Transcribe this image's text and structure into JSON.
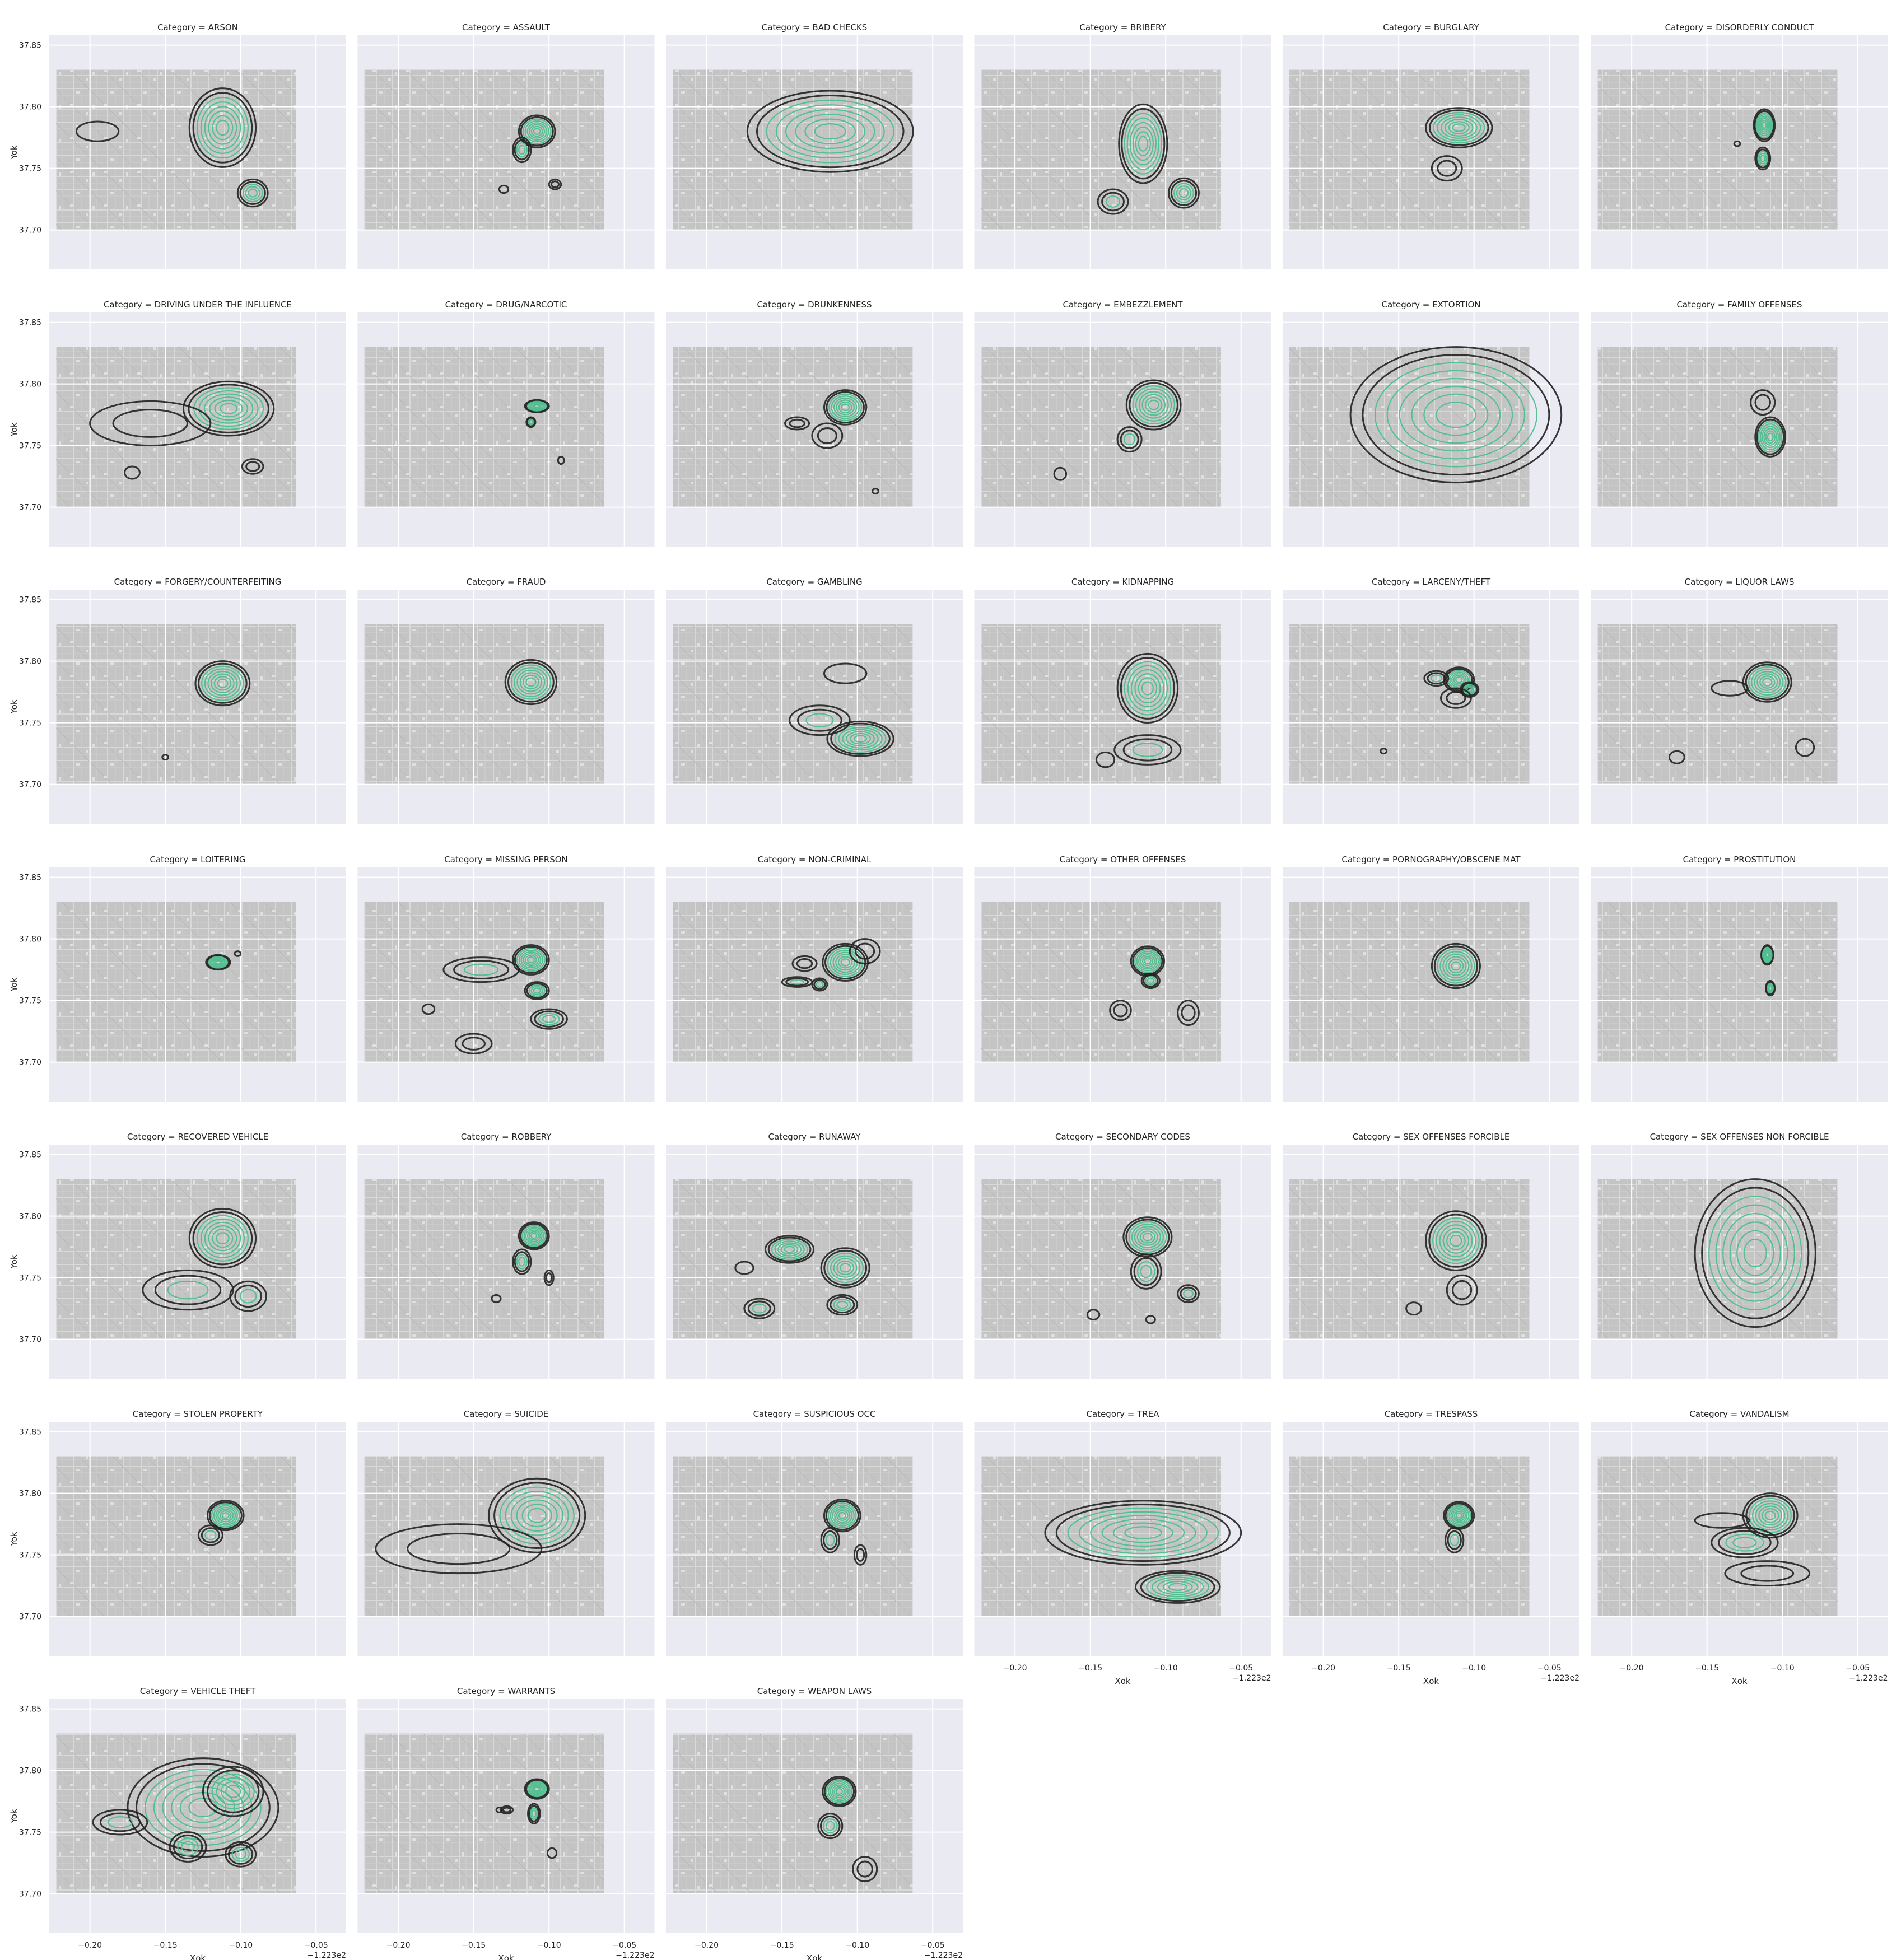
{
  "axes": {
    "xlabel": "Xok",
    "ylabel": "Yok",
    "x_offset_label": "−1.223e2",
    "x_ticks": [
      -0.2,
      -0.15,
      -0.1,
      -0.05
    ],
    "x_tick_labels": [
      "−0.20",
      "−0.15",
      "−0.10",
      "−0.05"
    ],
    "y_ticks": [
      37.7,
      37.75,
      37.8,
      37.85
    ],
    "y_tick_labels": [
      "37.70",
      "37.75",
      "37.80",
      "37.85"
    ],
    "xlim": [
      -0.227,
      -0.03
    ],
    "ylim": [
      37.668,
      37.858
    ]
  },
  "chart_data": {
    "type": "kde-contour-facets",
    "facet_title_prefix": "Category = ",
    "map_extent": {
      "x": [
        -0.2225,
        -0.0633
      ],
      "y": [
        37.7,
        37.83
      ]
    },
    "colors": {
      "outer_contour": "#222222",
      "inner_contour": "#4fbf8f",
      "map": "#c4c4c4",
      "axes_bg": "#eaeaf2",
      "grid": "#ffffff"
    },
    "facets": [
      {
        "category": "ARSON",
        "blobs": [
          [
            -0.112,
            37.783,
            0.022,
            0.032,
            8
          ],
          [
            -0.092,
            37.73,
            0.01,
            0.011,
            5
          ],
          [
            -0.195,
            37.78,
            0.014,
            0.008,
            1
          ]
        ]
      },
      {
        "category": "ASSAULT",
        "blobs": [
          [
            -0.108,
            37.78,
            0.012,
            0.013,
            8
          ],
          [
            -0.118,
            37.765,
            0.006,
            0.01,
            4
          ],
          [
            -0.096,
            37.737,
            0.004,
            0.004,
            2
          ],
          [
            -0.13,
            37.733,
            0.003,
            0.003,
            1
          ]
        ]
      },
      {
        "category": "BAD CHECKS",
        "blobs": [
          [
            -0.118,
            37.78,
            0.055,
            0.033,
            8
          ]
        ]
      },
      {
        "category": "BRIBERY",
        "blobs": [
          [
            -0.115,
            37.77,
            0.016,
            0.032,
            8
          ],
          [
            -0.088,
            37.73,
            0.01,
            0.012,
            5
          ],
          [
            -0.135,
            37.723,
            0.01,
            0.01,
            3
          ]
        ]
      },
      {
        "category": "BURGLARY",
        "blobs": [
          [
            -0.11,
            37.783,
            0.022,
            0.016,
            8
          ],
          [
            -0.118,
            37.75,
            0.01,
            0.01,
            2
          ]
        ]
      },
      {
        "category": "DISORDERLY CONDUCT",
        "blobs": [
          [
            -0.112,
            37.785,
            0.007,
            0.013,
            8
          ],
          [
            -0.113,
            37.758,
            0.005,
            0.009,
            5
          ],
          [
            -0.13,
            37.77,
            0.002,
            0.002,
            1
          ]
        ]
      },
      {
        "category": "DRIVING UNDER THE INFLUENCE",
        "blobs": [
          [
            -0.108,
            37.78,
            0.03,
            0.022,
            8
          ],
          [
            -0.16,
            37.768,
            0.04,
            0.018,
            2
          ],
          [
            -0.092,
            37.733,
            0.007,
            0.006,
            2
          ],
          [
            -0.172,
            37.728,
            0.005,
            0.005,
            1
          ]
        ]
      },
      {
        "category": "DRUG/NARCOTIC",
        "blobs": [
          [
            -0.108,
            37.782,
            0.008,
            0.005,
            8
          ],
          [
            -0.112,
            37.769,
            0.003,
            0.004,
            4
          ],
          [
            -0.092,
            37.738,
            0.002,
            0.003,
            1
          ]
        ]
      },
      {
        "category": "DRUNKENNESS",
        "blobs": [
          [
            -0.108,
            37.781,
            0.014,
            0.014,
            8
          ],
          [
            -0.14,
            37.768,
            0.008,
            0.005,
            2
          ],
          [
            -0.12,
            37.758,
            0.01,
            0.01,
            2
          ],
          [
            -0.088,
            37.713,
            0.002,
            0.002,
            1
          ]
        ]
      },
      {
        "category": "EMBEZZLEMENT",
        "blobs": [
          [
            -0.108,
            37.783,
            0.018,
            0.02,
            8
          ],
          [
            -0.124,
            37.755,
            0.008,
            0.01,
            3
          ],
          [
            -0.17,
            37.727,
            0.004,
            0.005,
            1
          ]
        ]
      },
      {
        "category": "EXTORTION",
        "blobs": [
          [
            -0.112,
            37.775,
            0.07,
            0.055,
            8
          ]
        ]
      },
      {
        "category": "FAMILY OFFENSES",
        "blobs": [
          [
            -0.108,
            37.757,
            0.01,
            0.016,
            8
          ],
          [
            -0.113,
            37.785,
            0.008,
            0.01,
            2
          ]
        ]
      },
      {
        "category": "FORGERY/COUNTERFEITING",
        "blobs": [
          [
            -0.112,
            37.782,
            0.018,
            0.018,
            8
          ],
          [
            -0.15,
            37.722,
            0.002,
            0.002,
            1
          ]
        ]
      },
      {
        "category": "FRAUD",
        "blobs": [
          [
            -0.112,
            37.783,
            0.017,
            0.018,
            8
          ]
        ]
      },
      {
        "category": "GAMBLING",
        "blobs": [
          [
            -0.098,
            37.737,
            0.022,
            0.014,
            8
          ],
          [
            -0.125,
            37.752,
            0.02,
            0.012,
            3
          ],
          [
            -0.108,
            37.79,
            0.014,
            0.008,
            1
          ]
        ]
      },
      {
        "category": "KIDNAPPING",
        "blobs": [
          [
            -0.112,
            37.778,
            0.02,
            0.028,
            8
          ],
          [
            -0.112,
            37.728,
            0.022,
            0.012,
            3
          ],
          [
            -0.14,
            37.72,
            0.006,
            0.006,
            1
          ]
        ]
      },
      {
        "category": "LARCENY/THEFT",
        "blobs": [
          [
            -0.11,
            37.785,
            0.01,
            0.01,
            7
          ],
          [
            -0.103,
            37.777,
            0.006,
            0.006,
            5
          ],
          [
            -0.125,
            37.786,
            0.008,
            0.006,
            3
          ],
          [
            -0.112,
            37.77,
            0.01,
            0.008,
            2
          ],
          [
            -0.16,
            37.727,
            0.002,
            0.002,
            1
          ]
        ]
      },
      {
        "category": "LIQUOR LAWS",
        "blobs": [
          [
            -0.11,
            37.783,
            0.016,
            0.016,
            8
          ],
          [
            -0.135,
            37.778,
            0.012,
            0.006,
            1
          ],
          [
            -0.17,
            37.722,
            0.005,
            0.005,
            1
          ],
          [
            -0.085,
            37.73,
            0.006,
            0.007,
            1
          ]
        ]
      },
      {
        "category": "LOITERING",
        "blobs": [
          [
            -0.115,
            37.781,
            0.008,
            0.006,
            8
          ],
          [
            -0.102,
            37.788,
            0.002,
            0.002,
            1
          ]
        ]
      },
      {
        "category": "MISSING PERSON",
        "blobs": [
          [
            -0.112,
            37.783,
            0.012,
            0.012,
            8
          ],
          [
            -0.108,
            37.758,
            0.008,
            0.007,
            5
          ],
          [
            -0.1,
            37.735,
            0.012,
            0.008,
            4
          ],
          [
            -0.145,
            37.775,
            0.025,
            0.01,
            3
          ],
          [
            -0.15,
            37.715,
            0.012,
            0.008,
            2
          ],
          [
            -0.18,
            37.743,
            0.004,
            0.004,
            1
          ]
        ]
      },
      {
        "category": "NON-CRIMINAL",
        "blobs": [
          [
            -0.108,
            37.781,
            0.015,
            0.015,
            8
          ],
          [
            -0.14,
            37.765,
            0.01,
            0.004,
            3
          ],
          [
            -0.125,
            37.763,
            0.005,
            0.005,
            3
          ],
          [
            -0.135,
            37.78,
            0.008,
            0.006,
            2
          ],
          [
            -0.095,
            37.79,
            0.01,
            0.01,
            2
          ]
        ]
      },
      {
        "category": "OTHER OFFENSES",
        "blobs": [
          [
            -0.112,
            37.782,
            0.011,
            0.012,
            8
          ],
          [
            -0.11,
            37.766,
            0.006,
            0.006,
            4
          ],
          [
            -0.13,
            37.742,
            0.007,
            0.008,
            2
          ],
          [
            -0.085,
            37.74,
            0.007,
            0.01,
            2
          ]
        ]
      },
      {
        "category": "PORNOGRAPHY/OBSCENE MAT",
        "blobs": [
          [
            -0.112,
            37.778,
            0.016,
            0.018,
            8
          ]
        ]
      },
      {
        "category": "PROSTITUTION",
        "blobs": [
          [
            -0.11,
            37.787,
            0.004,
            0.008,
            8
          ],
          [
            -0.108,
            37.76,
            0.003,
            0.006,
            5
          ]
        ]
      },
      {
        "category": "RECOVERED VEHICLE",
        "blobs": [
          [
            -0.112,
            37.782,
            0.022,
            0.024,
            8
          ],
          [
            -0.135,
            37.74,
            0.03,
            0.016,
            3
          ],
          [
            -0.095,
            37.735,
            0.012,
            0.012,
            3
          ]
        ]
      },
      {
        "category": "ROBBERY",
        "blobs": [
          [
            -0.11,
            37.784,
            0.01,
            0.011,
            8
          ],
          [
            -0.118,
            37.763,
            0.006,
            0.01,
            4
          ],
          [
            -0.1,
            37.75,
            0.003,
            0.006,
            2
          ],
          [
            -0.135,
            37.733,
            0.003,
            0.003,
            1
          ]
        ]
      },
      {
        "category": "RUNAWAY",
        "blobs": [
          [
            -0.145,
            37.773,
            0.016,
            0.011,
            7
          ],
          [
            -0.108,
            37.758,
            0.016,
            0.016,
            7
          ],
          [
            -0.11,
            37.728,
            0.01,
            0.008,
            4
          ],
          [
            -0.165,
            37.725,
            0.01,
            0.008,
            3
          ],
          [
            -0.175,
            37.758,
            0.006,
            0.005,
            1
          ]
        ]
      },
      {
        "category": "SECONDARY CODES",
        "blobs": [
          [
            -0.112,
            37.783,
            0.016,
            0.016,
            8
          ],
          [
            -0.113,
            37.755,
            0.01,
            0.014,
            4
          ],
          [
            -0.085,
            37.737,
            0.007,
            0.007,
            3
          ],
          [
            -0.148,
            37.72,
            0.004,
            0.004,
            1
          ],
          [
            -0.11,
            37.716,
            0.003,
            0.003,
            1
          ]
        ]
      },
      {
        "category": "SEX OFFENSES FORCIBLE",
        "blobs": [
          [
            -0.112,
            37.78,
            0.02,
            0.024,
            8
          ],
          [
            -0.14,
            37.725,
            0.005,
            0.005,
            1
          ],
          [
            -0.108,
            37.74,
            0.01,
            0.012,
            2
          ]
        ]
      },
      {
        "category": "SEX OFFENSES NON FORCIBLE",
        "blobs": [
          [
            -0.118,
            37.77,
            0.04,
            0.06,
            8
          ]
        ]
      },
      {
        "category": "STOLEN PROPERTY",
        "blobs": [
          [
            -0.11,
            37.782,
            0.012,
            0.012,
            8
          ],
          [
            -0.12,
            37.766,
            0.008,
            0.008,
            3
          ]
        ]
      },
      {
        "category": "SUICIDE",
        "blobs": [
          [
            -0.108,
            37.782,
            0.032,
            0.03,
            8
          ],
          [
            -0.16,
            37.755,
            0.055,
            0.02,
            2
          ]
        ]
      },
      {
        "category": "SUSPICIOUS OCC",
        "blobs": [
          [
            -0.11,
            37.782,
            0.012,
            0.013,
            8
          ],
          [
            -0.118,
            37.762,
            0.006,
            0.01,
            3
          ],
          [
            -0.098,
            37.75,
            0.004,
            0.008,
            2
          ]
        ]
      },
      {
        "category": "TREA",
        "blobs": [
          [
            -0.115,
            37.768,
            0.065,
            0.026,
            8
          ],
          [
            -0.092,
            37.724,
            0.028,
            0.013,
            7
          ]
        ]
      },
      {
        "category": "TRESPASS",
        "blobs": [
          [
            -0.11,
            37.782,
            0.01,
            0.011,
            8
          ],
          [
            -0.113,
            37.762,
            0.006,
            0.01,
            3
          ]
        ]
      },
      {
        "category": "VANDALISM",
        "blobs": [
          [
            -0.108,
            37.782,
            0.018,
            0.018,
            8
          ],
          [
            -0.125,
            37.76,
            0.022,
            0.012,
            4
          ],
          [
            -0.11,
            37.735,
            0.028,
            0.01,
            2
          ],
          [
            -0.14,
            37.778,
            0.018,
            0.006,
            1
          ]
        ]
      },
      {
        "category": "VEHICLE THEFT",
        "blobs": [
          [
            -0.125,
            37.77,
            0.05,
            0.04,
            8
          ],
          [
            -0.105,
            37.783,
            0.02,
            0.02,
            6
          ],
          [
            -0.135,
            37.738,
            0.012,
            0.012,
            4
          ],
          [
            -0.1,
            37.732,
            0.01,
            0.01,
            4
          ],
          [
            -0.18,
            37.758,
            0.018,
            0.01,
            3
          ]
        ]
      },
      {
        "category": "WARRANTS",
        "blobs": [
          [
            -0.108,
            37.785,
            0.008,
            0.008,
            8
          ],
          [
            -0.11,
            37.765,
            0.004,
            0.008,
            4
          ],
          [
            -0.128,
            37.768,
            0.004,
            0.003,
            2
          ],
          [
            -0.098,
            37.733,
            0.003,
            0.004,
            1
          ],
          [
            -0.133,
            37.768,
            0.002,
            0.002,
            1
          ]
        ]
      },
      {
        "category": "WEAPON LAWS",
        "blobs": [
          [
            -0.112,
            37.783,
            0.011,
            0.012,
            8
          ],
          [
            -0.118,
            37.755,
            0.008,
            0.01,
            4
          ],
          [
            -0.095,
            37.72,
            0.008,
            0.01,
            2
          ]
        ]
      }
    ]
  }
}
